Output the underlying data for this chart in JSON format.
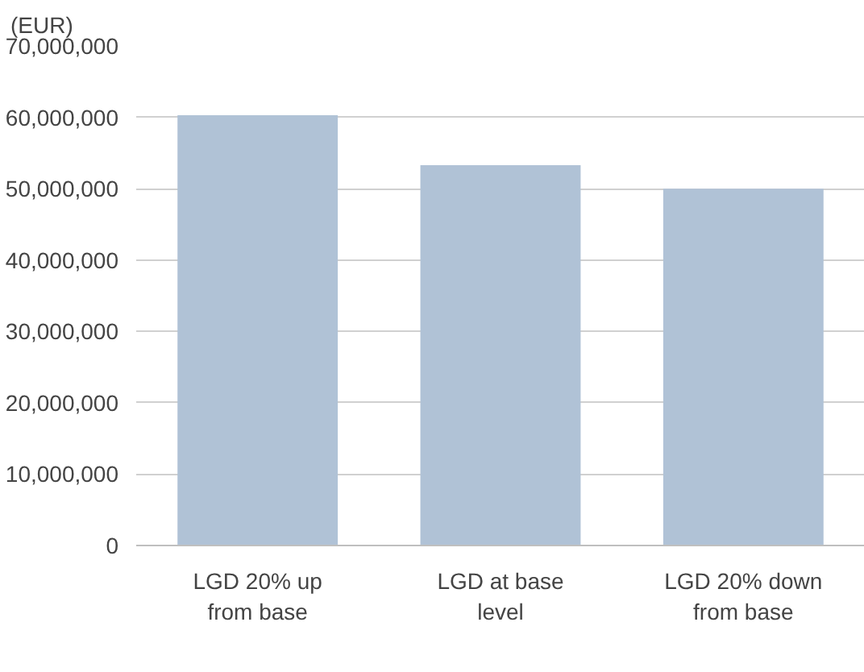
{
  "chart_data": {
    "type": "bar",
    "ylabel": "(EUR)",
    "categories": [
      "LGD 20% up from base",
      "LGD at base level",
      "LGD 20% down from base"
    ],
    "values": [
      60300000,
      53300000,
      50000000
    ],
    "color": "#b0c2d6",
    "ylim": [
      0,
      70000000
    ],
    "yticks": [
      {
        "value": 0,
        "label": "0"
      },
      {
        "value": 10000000,
        "label": "10,000,000"
      },
      {
        "value": 20000000,
        "label": "20,000,000"
      },
      {
        "value": 30000000,
        "label": "30,000,000"
      },
      {
        "value": 40000000,
        "label": "40,000,000"
      },
      {
        "value": 50000000,
        "label": "50,000,000"
      },
      {
        "value": 60000000,
        "label": "60,000,000"
      },
      {
        "value": 70000000,
        "label": "70,000,000"
      }
    ],
    "grid": "y"
  }
}
